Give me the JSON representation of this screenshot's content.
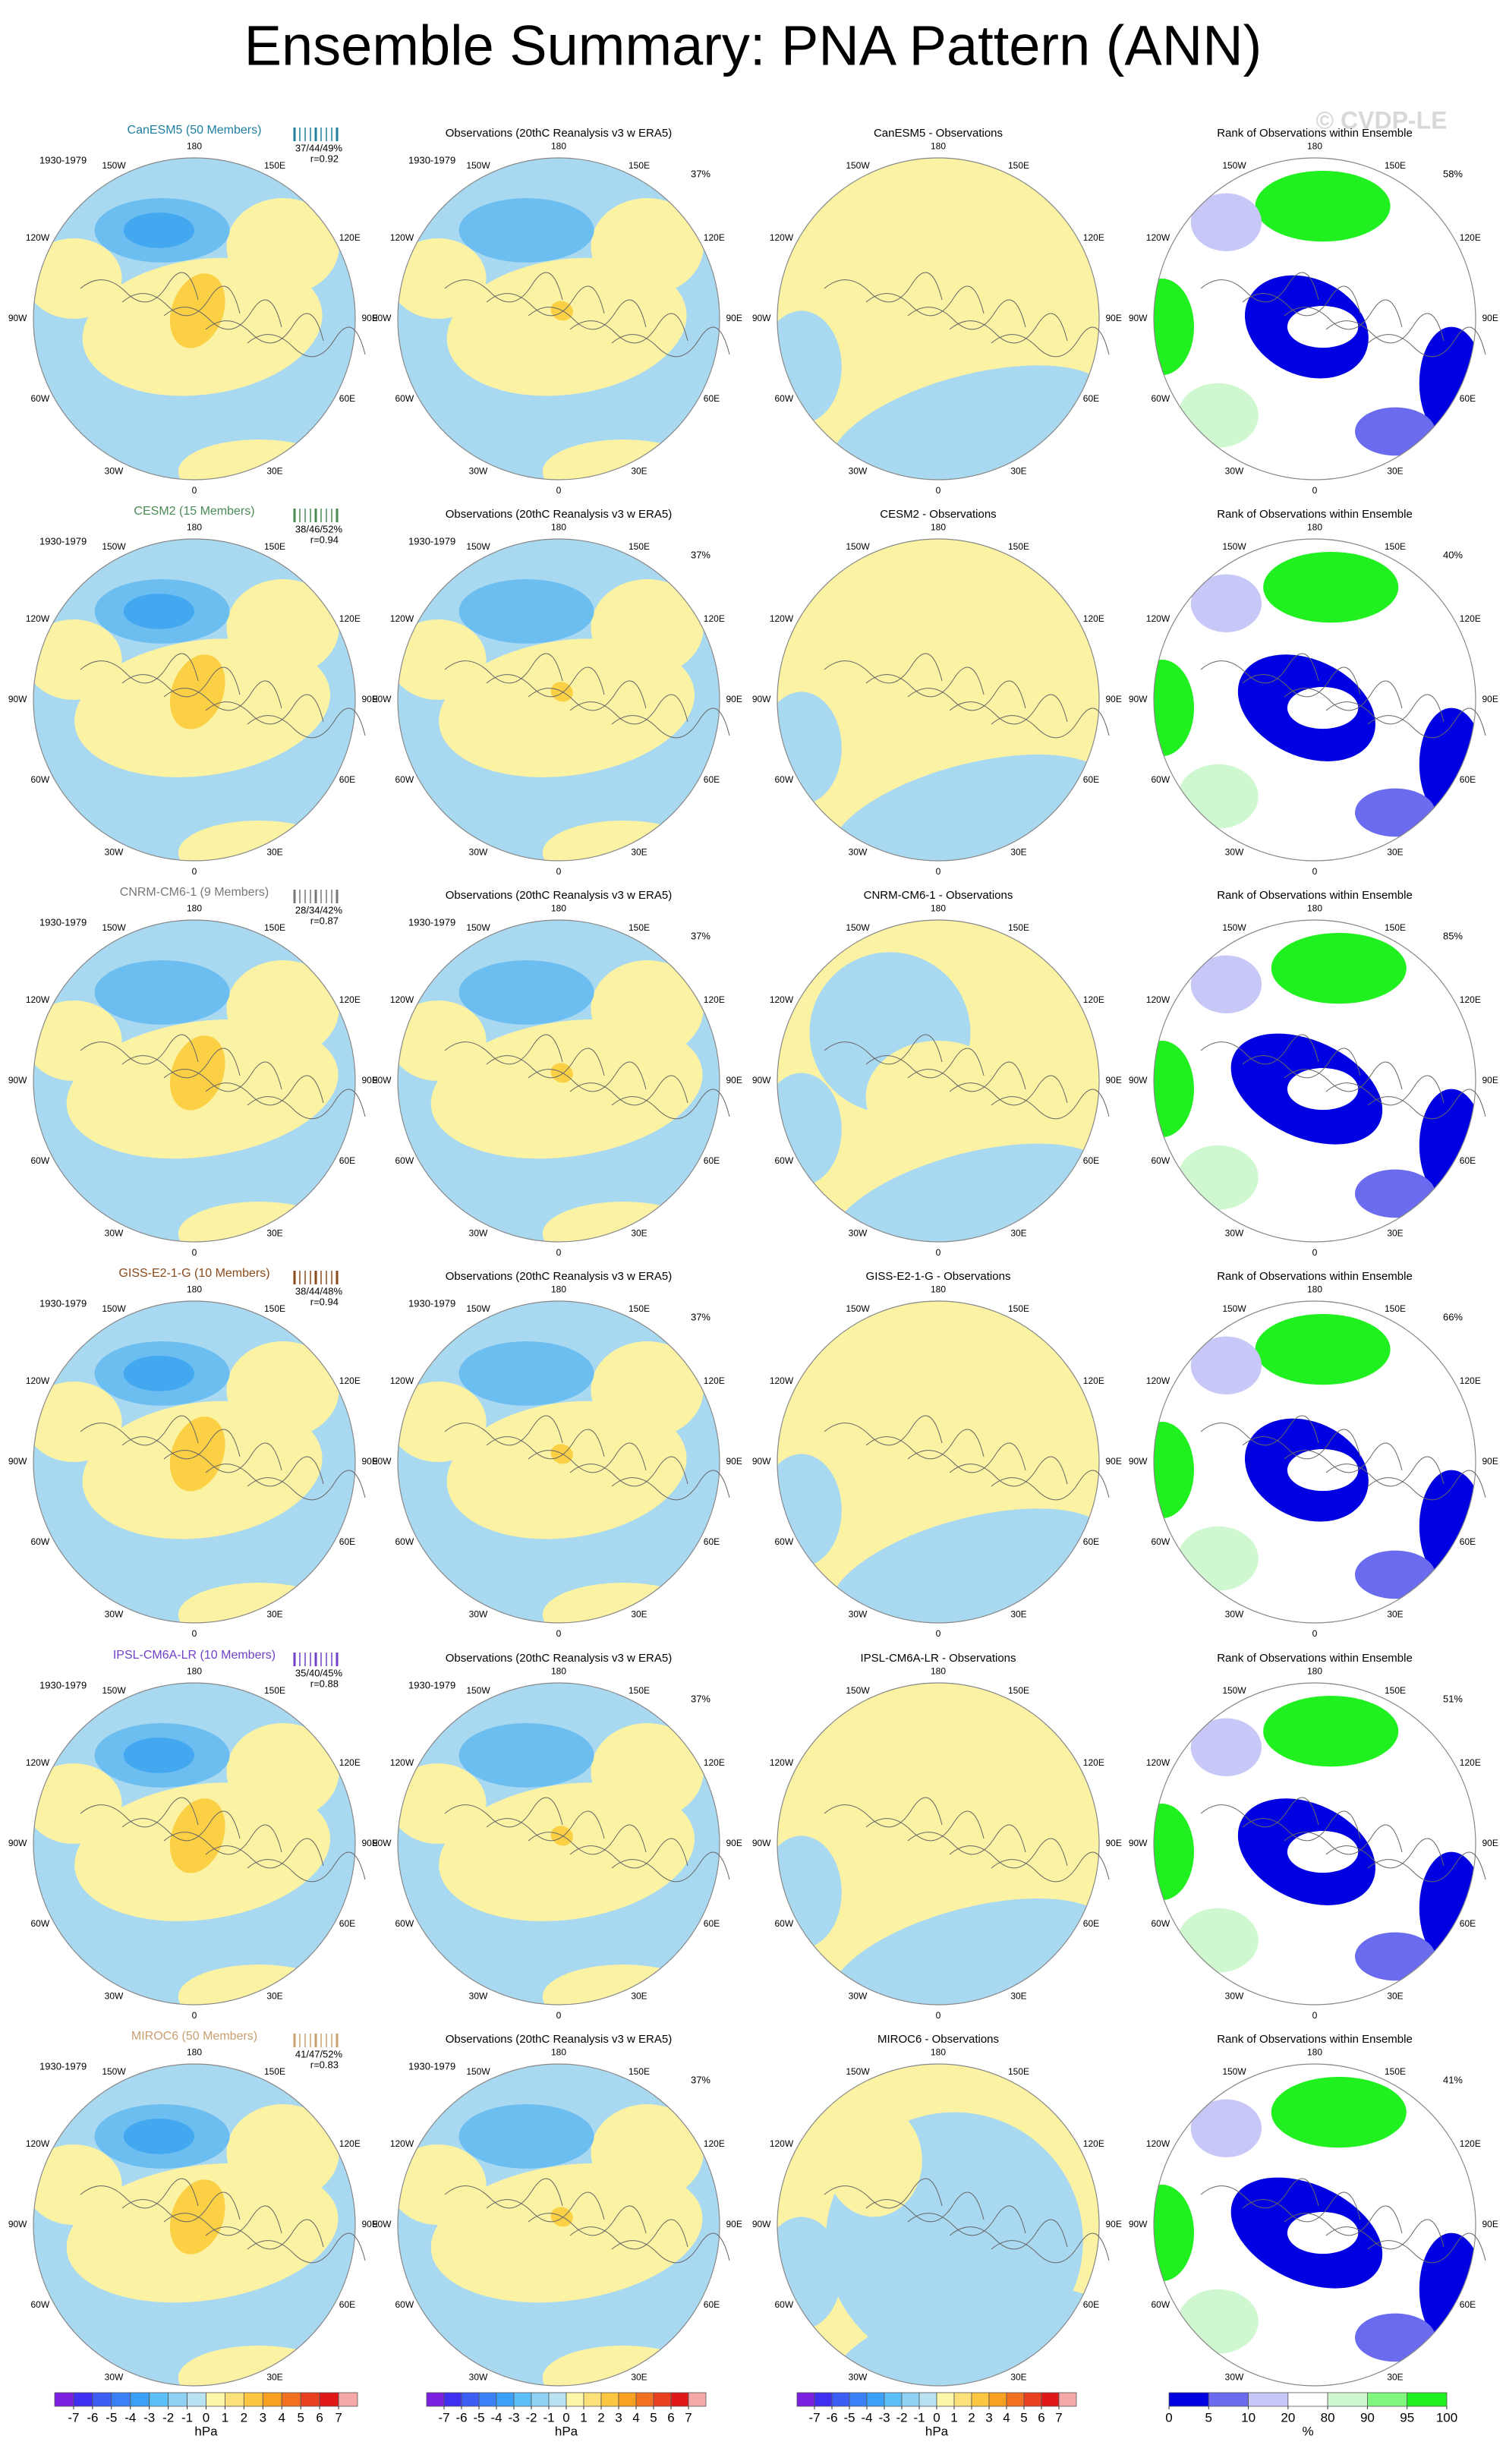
{
  "title": "Ensemble Summary: PNA Pattern (ANN)",
  "watermark": "© CVDP-LE",
  "longitude_labels": {
    "top": "180",
    "top_left": "150W",
    "top_right": "150E",
    "upper_left": "120W",
    "upper_right": "120E",
    "left": "90W",
    "right": "90E",
    "lower_left": "60W",
    "lower_right": "60E",
    "bottom_left": "30W",
    "bottom_right": "30E",
    "bottom": "0"
  },
  "rows": [
    {
      "model_title": "CanESM5 (50 Members)",
      "model_color": "#1f7f9f",
      "period": "1930-1979",
      "stats": "37/44/49%",
      "correlation": "r=0.92",
      "obs_title": "Observations (20thC Reanalysis v3 w ERA5)",
      "obs_period": "1930-1979",
      "obs_stat": "37%",
      "diff_title": "CanESM5 - Observations",
      "rank_title": "Rank of Observations within Ensemble",
      "rank_stat": "58%"
    },
    {
      "model_title": "CESM2 (15 Members)",
      "model_color": "#4a8a55",
      "period": "1930-1979",
      "stats": "38/46/52%",
      "correlation": "r=0.94",
      "obs_title": "Observations (20thC Reanalysis v3 w ERA5)",
      "obs_period": "1930-1979",
      "obs_stat": "37%",
      "diff_title": "CESM2 - Observations",
      "rank_title": "Rank of Observations within Ensemble",
      "rank_stat": "40%"
    },
    {
      "model_title": "CNRM-CM6-1 (9 Members)",
      "model_color": "#777777",
      "period": "1930-1979",
      "stats": "28/34/42%",
      "correlation": "r=0.87",
      "obs_title": "Observations (20thC Reanalysis v3 w ERA5)",
      "obs_period": "1930-1979",
      "obs_stat": "37%",
      "diff_title": "CNRM-CM6-1 - Observations",
      "rank_title": "Rank of Observations within Ensemble",
      "rank_stat": "85%"
    },
    {
      "model_title": "GISS-E2-1-G (10 Members)",
      "model_color": "#8a4a1a",
      "period": "1930-1979",
      "stats": "38/44/48%",
      "correlation": "r=0.94",
      "obs_title": "Observations (20thC Reanalysis v3 w ERA5)",
      "obs_period": "1930-1979",
      "obs_stat": "37%",
      "diff_title": "GISS-E2-1-G - Observations",
      "rank_title": "Rank of Observations within Ensemble",
      "rank_stat": "66%"
    },
    {
      "model_title": "IPSL-CM6A-LR (10 Members)",
      "model_color": "#7040c8",
      "period": "1930-1979",
      "stats": "35/40/45%",
      "correlation": "r=0.88",
      "obs_title": "Observations (20thC Reanalysis v3 w ERA5)",
      "obs_period": "1930-1979",
      "obs_stat": "37%",
      "diff_title": "IPSL-CM6A-LR - Observations",
      "rank_title": "Rank of Observations within Ensemble",
      "rank_stat": "51%"
    },
    {
      "model_title": "MIROC6 (50 Members)",
      "model_color": "#c8a070",
      "period": "1930-1979",
      "stats": "41/47/52%",
      "correlation": "r=0.83",
      "obs_title": "Observations (20thC Reanalysis v3 w ERA5)",
      "obs_period": "1930-1979",
      "obs_stat": "37%",
      "diff_title": "MIROC6 - Observations",
      "rank_title": "Rank of Observations within Ensemble",
      "rank_stat": "41%"
    }
  ],
  "colorbars": {
    "hpa": {
      "levels": [
        -7,
        -6,
        -5,
        -4,
        -3,
        -2,
        -1,
        0,
        1,
        2,
        3,
        4,
        5,
        6,
        7
      ],
      "unit": "hPa",
      "colors": [
        "#7b1fe0",
        "#3f2ff0",
        "#3d5ef5",
        "#3b80f7",
        "#3aa0f8",
        "#5cc0f8",
        "#8fd2f4",
        "#b8e2f2",
        "#fdf5a8",
        "#fce07a",
        "#fcc640",
        "#f8a020",
        "#f27020",
        "#e84020",
        "#e01818",
        "#f6a8a8"
      ]
    },
    "rank": {
      "levels": [
        0,
        5,
        10,
        20,
        80,
        90,
        95,
        100
      ],
      "unit": "%",
      "colors": [
        "#0000e0",
        "#6b6bf0",
        "#c8c8f8",
        "#ffffff",
        "#d0f8d0",
        "#80f880",
        "#20f020"
      ]
    }
  }
}
